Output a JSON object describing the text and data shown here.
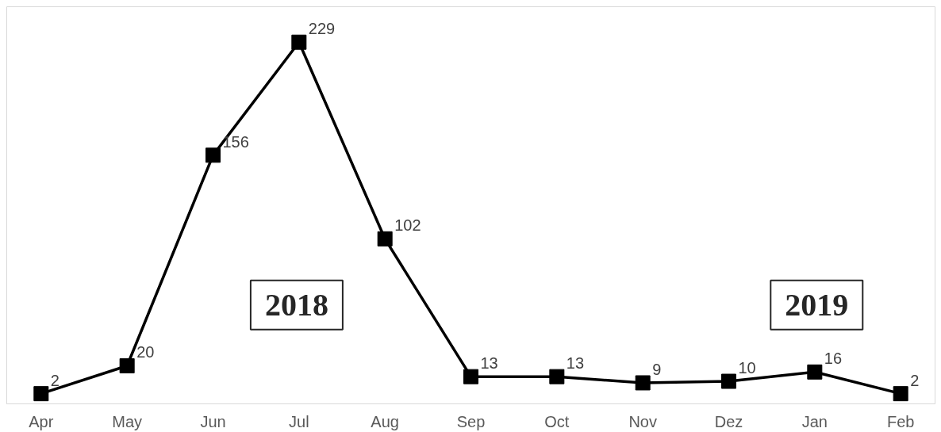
{
  "chart_data": {
    "type": "line",
    "categories": [
      "Apr",
      "May",
      "Jun",
      "Jul",
      "Aug",
      "Sep",
      "Oct",
      "Nov",
      "Dez",
      "Jan",
      "Feb"
    ],
    "series": [
      {
        "color": "#000000",
        "values": [
          2,
          20,
          156,
          229,
          102,
          13,
          13,
          9,
          10,
          16,
          2
        ]
      }
    ],
    "annotations": [
      "2018",
      "2019"
    ],
    "data_labels": true,
    "marker": "square",
    "line_style": "solid",
    "grid": false
  }
}
